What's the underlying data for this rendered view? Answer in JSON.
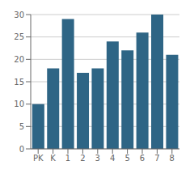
{
  "chart_data": {
    "type": "bar",
    "categories": [
      "PK",
      "K",
      "1",
      "2",
      "3",
      "4",
      "5",
      "6",
      "7",
      "8"
    ],
    "values": [
      10,
      18,
      29,
      17,
      18,
      24,
      22,
      26,
      30,
      21
    ],
    "color": "#2e6585",
    "ylim": [
      0,
      30
    ],
    "yticks": [
      0,
      5,
      10,
      15,
      20,
      25,
      30
    ],
    "grid": true
  }
}
